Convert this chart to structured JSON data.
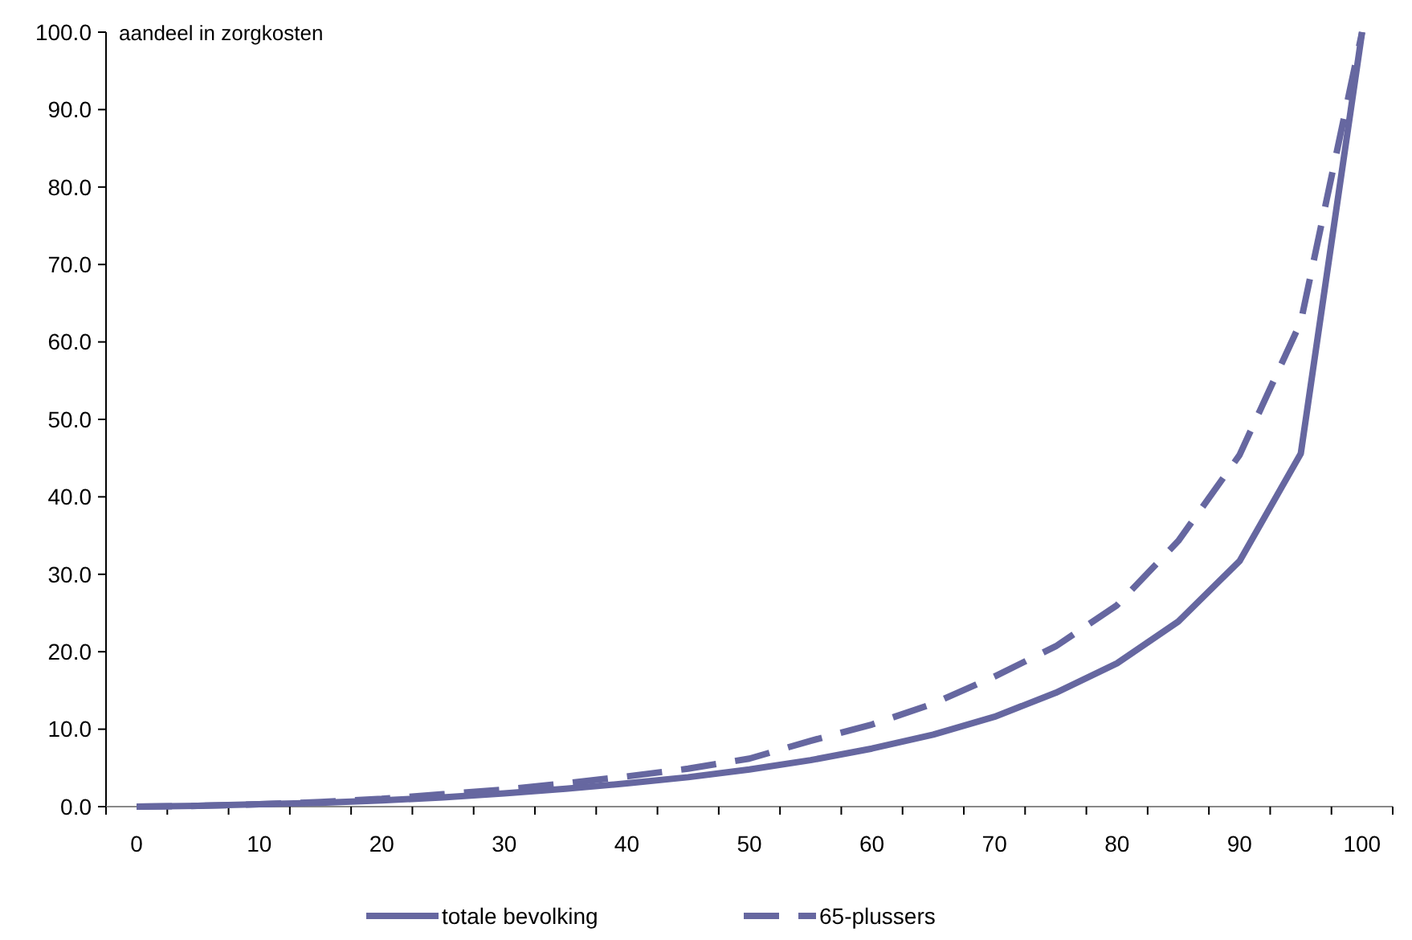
{
  "chart_data": {
    "type": "line",
    "ylabel": "aandeel in zorgkosten",
    "categories": [
      "0",
      null,
      "10",
      null,
      "20",
      null,
      "30",
      null,
      "40",
      null,
      "50",
      null,
      "60",
      null,
      "70",
      null,
      "80",
      null,
      "90",
      null,
      "100"
    ],
    "series": [
      {
        "name": "totale bevolking",
        "color": "#6667a0",
        "line_style": "solid",
        "values": [
          0,
          0.1,
          0.3,
          0.5,
          0.8,
          1.2,
          1.7,
          2.3,
          3.0,
          3.8,
          4.8,
          6.0,
          7.5,
          9.3,
          11.6,
          14.7,
          18.5,
          23.9,
          31.7,
          45.6,
          100
        ]
      },
      {
        "name": "65-plussers",
        "color": "#6667a0",
        "line_style": "dashed",
        "values": [
          0,
          0.1,
          0.3,
          0.6,
          1.0,
          1.6,
          2.2,
          3.0,
          3.9,
          4.9,
          6.2,
          8.5,
          10.6,
          13.3,
          16.8,
          20.7,
          26.0,
          34.3,
          45.4,
          62.6,
          100
        ]
      }
    ],
    "ylim": [
      0,
      100
    ],
    "yticks": [
      {
        "value": 0,
        "label": "0.0"
      },
      {
        "value": 10,
        "label": "10.0"
      },
      {
        "value": 20,
        "label": "20.0"
      },
      {
        "value": 30,
        "label": "30.0"
      },
      {
        "value": 40,
        "label": "40.0"
      },
      {
        "value": 50,
        "label": "50.0"
      },
      {
        "value": 60,
        "label": "60.0"
      },
      {
        "value": 70,
        "label": "70.0"
      },
      {
        "value": 80,
        "label": "80.0"
      },
      {
        "value": 90,
        "label": "90.0"
      },
      {
        "value": 100,
        "label": "100.0"
      }
    ],
    "grid": false,
    "legend": "bottom",
    "marker": "none"
  }
}
